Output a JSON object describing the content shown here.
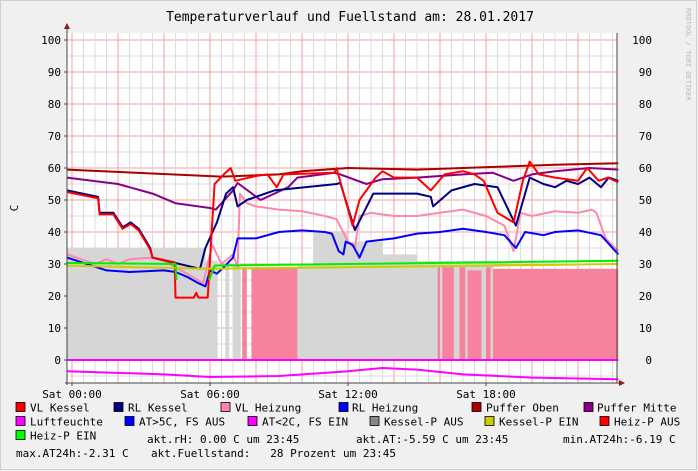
{
  "chart_data": {
    "type": "line",
    "title": "Temperaturverlauf und Fuellstand am: 28.01.2017",
    "ylabel": "C",
    "watermark": "RRDTOOL / TOBI OETIKER",
    "ylim": [
      -7,
      103
    ],
    "xlim": [
      "-00:13",
      "23:55"
    ],
    "yticks": [
      0,
      10,
      20,
      30,
      40,
      50,
      60,
      70,
      80,
      90,
      100
    ],
    "xticks": [
      {
        "t": "00:00",
        "label": "Sat 00:00"
      },
      {
        "t": "06:00",
        "label": "Sat 06:00"
      },
      {
        "t": "12:00",
        "label": "Sat 12:00"
      },
      {
        "t": "18:00",
        "label": "Sat 18:00"
      }
    ],
    "grid": true,
    "legend_placement": "bottom",
    "areas": [
      {
        "name": "Kessel-P AUS",
        "fill": "#d6d6d6",
        "segments": [
          [
            "-00:13",
            "05:48",
            35
          ],
          [
            "05:48",
            "06:20",
            31
          ],
          [
            "06:40",
            "06:50",
            30
          ],
          [
            "07:00",
            "07:20",
            30
          ],
          [
            "09:48",
            "10:30",
            30
          ],
          [
            "10:30",
            "12:00",
            40
          ],
          [
            "12:00",
            "13:30",
            37
          ],
          [
            "13:30",
            "15:00",
            33
          ],
          [
            "15:00",
            "18:20",
            31
          ]
        ]
      },
      {
        "name": "Heiz-P AUS",
        "fill": "#f7829e",
        "segments": [
          [
            "07:24",
            "07:36",
            29
          ],
          [
            "07:48",
            "09:48",
            29
          ],
          [
            "15:54",
            "16:00",
            29
          ],
          [
            "16:06",
            "16:36",
            29
          ],
          [
            "16:51",
            "17:06",
            29
          ],
          [
            "17:12",
            "17:48",
            28
          ],
          [
            "18:00",
            "18:12",
            29
          ],
          [
            "18:18",
            "23:45",
            28.5
          ]
        ]
      }
    ],
    "series": [
      {
        "name": "Puffer Oben",
        "color": "#aa0000",
        "points": [
          [
            "-00:13",
            59.5
          ],
          [
            "06:30",
            57.3
          ],
          [
            "09:00",
            58
          ],
          [
            "10:00",
            59
          ],
          [
            "12:00",
            60
          ],
          [
            "15:00",
            59.5
          ],
          [
            "17:00",
            60
          ],
          [
            "19:00",
            60.5
          ],
          [
            "21:00",
            61
          ],
          [
            "23:45",
            61.5
          ]
        ]
      },
      {
        "name": "Puffer Mitte",
        "color": "#880088",
        "points": [
          [
            "-00:13",
            57
          ],
          [
            "02:00",
            55
          ],
          [
            "03:30",
            52
          ],
          [
            "04:30",
            49
          ],
          [
            "06:00",
            47.5
          ],
          [
            "06:15",
            47
          ],
          [
            "07:00",
            53
          ],
          [
            "07:12",
            55.3
          ],
          [
            "08:12",
            50
          ],
          [
            "09:24",
            54
          ],
          [
            "09:48",
            57
          ],
          [
            "11:24",
            58.5
          ],
          [
            "11:40",
            58
          ],
          [
            "12:48",
            55
          ],
          [
            "13:30",
            56.5
          ],
          [
            "15:00",
            57
          ],
          [
            "17:00",
            58
          ],
          [
            "18:18",
            58.5
          ],
          [
            "19:12",
            56
          ],
          [
            "20:00",
            58
          ],
          [
            "21:00",
            59
          ],
          [
            "22:30",
            60
          ],
          [
            "23:45",
            59.5
          ]
        ]
      },
      {
        "name": "VL Heizung",
        "color": "#ff88aa",
        "points": [
          [
            "-00:13",
            33
          ],
          [
            "01:00",
            30
          ],
          [
            "01:30",
            31.5
          ],
          [
            "02:00",
            30
          ],
          [
            "02:30",
            31.5
          ],
          [
            "03:30",
            32
          ],
          [
            "04:00",
            31
          ],
          [
            "05:00",
            27
          ],
          [
            "05:42",
            24
          ],
          [
            "06:06",
            36
          ],
          [
            "06:30",
            30
          ],
          [
            "07:00",
            33
          ],
          [
            "07:12",
            29
          ],
          [
            "07:18",
            52
          ],
          [
            "07:36",
            49
          ],
          [
            "08:00",
            48
          ],
          [
            "09:00",
            47
          ],
          [
            "10:00",
            46.5
          ],
          [
            "11:00",
            45
          ],
          [
            "11:30",
            44
          ],
          [
            "12:00",
            37
          ],
          [
            "12:18",
            35
          ],
          [
            "12:30",
            45
          ],
          [
            "13:00",
            46
          ],
          [
            "14:00",
            45
          ],
          [
            "15:00",
            45
          ],
          [
            "16:00",
            46
          ],
          [
            "17:00",
            47
          ],
          [
            "18:00",
            45
          ],
          [
            "18:48",
            42
          ],
          [
            "19:12",
            34
          ],
          [
            "19:30",
            46
          ],
          [
            "20:00",
            45
          ],
          [
            "21:00",
            46.5
          ],
          [
            "22:00",
            46
          ],
          [
            "22:36",
            47
          ],
          [
            "22:48",
            46
          ],
          [
            "23:12",
            38
          ],
          [
            "23:45",
            34
          ]
        ]
      },
      {
        "name": "RL Heizung",
        "color": "#0000ff",
        "points": [
          [
            "-00:13",
            32
          ],
          [
            "01:30",
            28
          ],
          [
            "02:30",
            27.5
          ],
          [
            "04:00",
            28
          ],
          [
            "04:30",
            27.5
          ],
          [
            "05:00",
            26
          ],
          [
            "05:30",
            24
          ],
          [
            "05:48",
            23
          ],
          [
            "06:00",
            28
          ],
          [
            "06:18",
            27
          ],
          [
            "06:36",
            29
          ],
          [
            "07:00",
            32
          ],
          [
            "07:12",
            38
          ],
          [
            "08:00",
            38
          ],
          [
            "09:00",
            40
          ],
          [
            "10:00",
            40.5
          ],
          [
            "11:00",
            40
          ],
          [
            "11:18",
            39.5
          ],
          [
            "11:36",
            34
          ],
          [
            "11:48",
            33
          ],
          [
            "11:54",
            37
          ],
          [
            "12:12",
            36
          ],
          [
            "12:30",
            32
          ],
          [
            "12:48",
            37
          ],
          [
            "14:00",
            38
          ],
          [
            "15:00",
            39.5
          ],
          [
            "16:00",
            40
          ],
          [
            "17:00",
            41
          ],
          [
            "18:00",
            40
          ],
          [
            "18:48",
            39
          ],
          [
            "19:18",
            35
          ],
          [
            "19:42",
            40
          ],
          [
            "20:30",
            39
          ],
          [
            "21:00",
            40
          ],
          [
            "22:00",
            40.5
          ],
          [
            "23:00",
            39
          ],
          [
            "23:45",
            33
          ]
        ]
      },
      {
        "name": "RL Kessel",
        "color": "#000080",
        "points": [
          [
            "-00:13",
            53
          ],
          [
            "01:08",
            51
          ],
          [
            "01:12",
            46
          ],
          [
            "01:48",
            46
          ],
          [
            "02:12",
            41.5
          ],
          [
            "02:33",
            43
          ],
          [
            "02:54",
            41
          ],
          [
            "03:24",
            35
          ],
          [
            "03:30",
            32
          ],
          [
            "05:34",
            28.5
          ],
          [
            "05:48",
            35
          ],
          [
            "06:18",
            43
          ],
          [
            "06:42",
            52
          ],
          [
            "07:00",
            54
          ],
          [
            "07:12",
            48
          ],
          [
            "07:36",
            50
          ],
          [
            "08:48",
            53
          ],
          [
            "11:30",
            55
          ],
          [
            "11:40",
            55.3
          ],
          [
            "12:18",
            40.6
          ],
          [
            "13:06",
            52
          ],
          [
            "15:00",
            52
          ],
          [
            "15:36",
            51
          ],
          [
            "15:42",
            48
          ],
          [
            "16:30",
            53
          ],
          [
            "17:30",
            55
          ],
          [
            "18:30",
            54
          ],
          [
            "19:18",
            42
          ],
          [
            "19:54",
            57
          ],
          [
            "20:30",
            55
          ],
          [
            "21:00",
            54
          ],
          [
            "21:30",
            56
          ],
          [
            "22:00",
            55
          ],
          [
            "22:30",
            57
          ],
          [
            "23:00",
            54
          ],
          [
            "23:20",
            57
          ],
          [
            "23:45",
            56
          ]
        ]
      },
      {
        "name": "VL Kessel",
        "color": "#ff0000",
        "points": [
          [
            "-00:13",
            52.5
          ],
          [
            "01:08",
            50.5
          ],
          [
            "01:12",
            45.5
          ],
          [
            "01:48",
            45.5
          ],
          [
            "02:12",
            41
          ],
          [
            "02:33",
            42.5
          ],
          [
            "02:54",
            40.5
          ],
          [
            "03:24",
            34.5
          ],
          [
            "03:30",
            32
          ],
          [
            "04:28",
            30.5
          ],
          [
            "04:30",
            19.5
          ],
          [
            "05:18",
            19.5
          ],
          [
            "05:24",
            21
          ],
          [
            "05:30",
            19.5
          ],
          [
            "05:54",
            19.5
          ],
          [
            "06:12",
            55
          ],
          [
            "06:36",
            58
          ],
          [
            "06:54",
            60
          ],
          [
            "07:06",
            56
          ],
          [
            "08:00",
            57.5
          ],
          [
            "08:30",
            58
          ],
          [
            "08:54",
            54
          ],
          [
            "09:12",
            58
          ],
          [
            "11:24",
            58.5
          ],
          [
            "11:30",
            60
          ],
          [
            "12:12",
            42
          ],
          [
            "12:30",
            50
          ],
          [
            "13:12",
            57
          ],
          [
            "13:30",
            59
          ],
          [
            "14:00",
            57
          ],
          [
            "15:00",
            57
          ],
          [
            "15:36",
            53
          ],
          [
            "16:12",
            58
          ],
          [
            "17:00",
            59
          ],
          [
            "17:30",
            58
          ],
          [
            "17:54",
            56
          ],
          [
            "18:30",
            46
          ],
          [
            "19:12",
            43
          ],
          [
            "19:36",
            56
          ],
          [
            "19:54",
            62
          ],
          [
            "20:18",
            58
          ],
          [
            "21:00",
            57
          ],
          [
            "22:00",
            56
          ],
          [
            "22:24",
            60
          ],
          [
            "22:54",
            56
          ],
          [
            "23:18",
            57
          ],
          [
            "23:45",
            55.5
          ]
        ]
      },
      {
        "name": "Kessel-P EIN",
        "color": "#cccc00",
        "points": [
          [
            "-00:13",
            29.5
          ],
          [
            "06:00",
            28.5
          ],
          [
            "12:00",
            29
          ],
          [
            "18:00",
            29.5
          ],
          [
            "23:45",
            30
          ]
        ]
      },
      {
        "name": "Heiz-P EIN",
        "color": "#00ee00",
        "points": [
          [
            "-00:13",
            30.3
          ],
          [
            "04:30",
            30
          ],
          [
            "04:33",
            25
          ],
          null,
          [
            "05:58",
            25
          ],
          [
            "06:12",
            29.5
          ],
          [
            "12:00",
            30
          ],
          [
            "18:00",
            30.5
          ],
          [
            "23:45",
            31
          ]
        ]
      },
      {
        "name": "Luftfeuchte",
        "color": "#ff00ff",
        "points": [
          [
            "-00:13",
            0
          ],
          [
            "23:45",
            0
          ]
        ]
      },
      {
        "name": "AT<2C, FS EIN",
        "color": "#ff00ff",
        "points": [
          [
            "-00:13",
            -3.5
          ],
          [
            "04:00",
            -4.5
          ],
          [
            "06:00",
            -5.3
          ],
          [
            "09:00",
            -5
          ],
          [
            "12:00",
            -3.5
          ],
          [
            "13:30",
            -2.5
          ],
          [
            "15:00",
            -3
          ],
          [
            "17:00",
            -4.5
          ],
          [
            "20:00",
            -5.5
          ],
          [
            "23:45",
            -6
          ]
        ]
      }
    ]
  },
  "legend": {
    "items": [
      {
        "label": "VL Kessel",
        "color": "#ff0000"
      },
      {
        "label": "RL Kessel",
        "color": "#000080"
      },
      {
        "label": "VL Heizung",
        "color": "#ff88aa"
      },
      {
        "label": "RL Heizung",
        "color": "#0000ff"
      },
      {
        "label": "Puffer Oben",
        "color": "#aa0000"
      },
      {
        "label": "Puffer Mitte",
        "color": "#880088"
      },
      {
        "label": "Luftfeuchte",
        "color": "#ff00ff"
      },
      {
        "label": "AT>5C, FS AUS",
        "color": "#0000ff"
      },
      {
        "label": "AT<2C, FS EIN",
        "color": "#ff00ff"
      },
      {
        "label": "Kessel-P AUS",
        "color": "#888888"
      },
      {
        "label": "Kessel-P EIN",
        "color": "#cccc00"
      },
      {
        "label": "Heiz-P AUS",
        "color": "#ff0000"
      },
      {
        "label": "Heiz-P EIN",
        "color": "#00ff00"
      }
    ],
    "stats": {
      "akt_rh": "akt.rH: 0.00 C um 23:45",
      "akt_at": "akt.AT:-5.59 C um 23:45",
      "min_at": "min.AT24h:-6.19 C",
      "max_at": "max.AT24h:-2.31 C",
      "fuellstand": "akt.Fuellstand:   28 Prozent um 23:45"
    }
  }
}
